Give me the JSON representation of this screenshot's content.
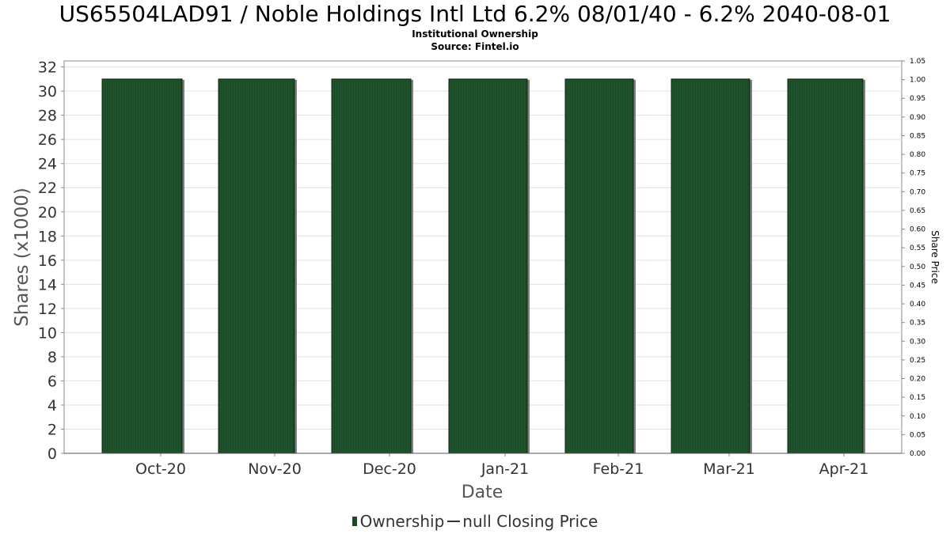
{
  "header": {
    "title": "US65504LAD91 / Noble Holdings Intl Ltd 6.2% 08/01/40 - 6.2% 2040-08-01",
    "subtitle": "Institutional Ownership",
    "source": "Source: Fintel.io"
  },
  "legend": {
    "ownership_label": "Ownership",
    "price_label": "null Closing Price"
  },
  "colors": {
    "bar_fill": "#1a4a26",
    "bar_stripe": "#2f6b3c",
    "bar_shadow": "#808080",
    "grid": "#e0e0e0",
    "axis": "#888888"
  },
  "chart_data": {
    "type": "bar",
    "xlabel": "Date",
    "ylabel": "Shares (x1000)",
    "y2label": "Share Price",
    "categories": [
      "Oct-20",
      "Nov-20",
      "Dec-20",
      "Jan-21",
      "Feb-21",
      "Mar-21",
      "Apr-21"
    ],
    "series": [
      {
        "name": "Ownership",
        "values": [
          31,
          31,
          31,
          31,
          31,
          31,
          31
        ]
      }
    ],
    "ylim": [
      0,
      32.5
    ],
    "yticks": [
      0,
      2,
      4,
      6,
      8,
      10,
      12,
      14,
      16,
      18,
      20,
      22,
      24,
      26,
      28,
      30,
      32
    ],
    "y2lim": [
      0,
      1.05
    ],
    "y2ticks": [
      "0.00",
      "0.05",
      "0.10",
      "0.15",
      "0.20",
      "0.25",
      "0.30",
      "0.35",
      "0.40",
      "0.45",
      "0.50",
      "0.55",
      "0.60",
      "0.65",
      "0.70",
      "0.75",
      "0.80",
      "0.85",
      "0.90",
      "0.95",
      "1.00",
      "1.05"
    ],
    "grid": true
  }
}
